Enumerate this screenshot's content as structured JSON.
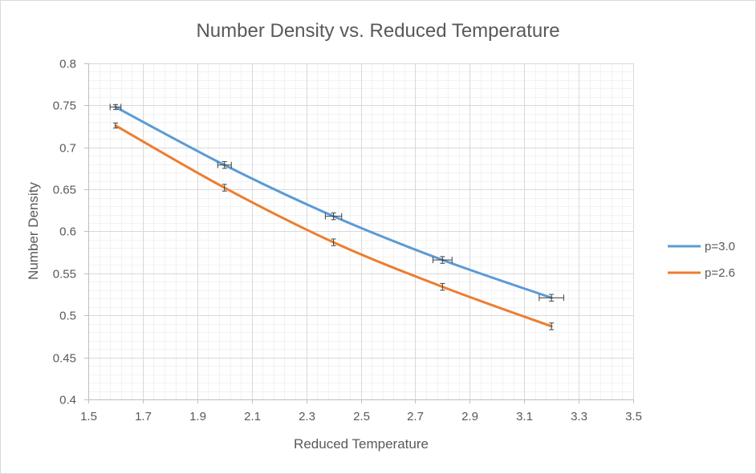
{
  "chart_data": {
    "type": "line",
    "title": "Number Density vs. Reduced Temperature",
    "xlabel": "Reduced Temperature",
    "ylabel": "Number Density",
    "xlim": [
      1.5,
      3.5
    ],
    "ylim": [
      0.4,
      0.8
    ],
    "x_major_step": 0.2,
    "y_major_step": 0.05,
    "x_minor_step": 0.04,
    "y_minor_step": 0.01,
    "grid": true,
    "legend_position": "right",
    "x_tick_labels": [
      "1.5",
      "1.7",
      "1.9",
      "2.1",
      "2.3",
      "2.5",
      "2.7",
      "2.9",
      "3.1",
      "3.3",
      "3.5"
    ],
    "y_tick_labels": [
      "0.4",
      "0.45",
      "0.5",
      "0.55",
      "0.6",
      "0.65",
      "0.7",
      "0.75",
      "0.8"
    ],
    "series": [
      {
        "name": "p=3.0",
        "color": "#5b9bd5",
        "x": [
          1.6,
          2.0,
          2.4,
          2.8,
          3.2
        ],
        "y": [
          0.748,
          0.679,
          0.618,
          0.566,
          0.521
        ],
        "x_err": [
          0.02,
          0.025,
          0.03,
          0.035,
          0.045
        ],
        "y_err": [
          0.003,
          0.004,
          0.004,
          0.004,
          0.004
        ]
      },
      {
        "name": "p=2.6",
        "color": "#ed7d31",
        "x": [
          1.6,
          2.0,
          2.4,
          2.8,
          3.2
        ],
        "y": [
          0.726,
          0.652,
          0.587,
          0.534,
          0.487
        ],
        "x_err": [
          0.0,
          0.0,
          0.0,
          0.0,
          0.0
        ],
        "y_err": [
          0.003,
          0.004,
          0.004,
          0.004,
          0.004
        ]
      }
    ]
  }
}
